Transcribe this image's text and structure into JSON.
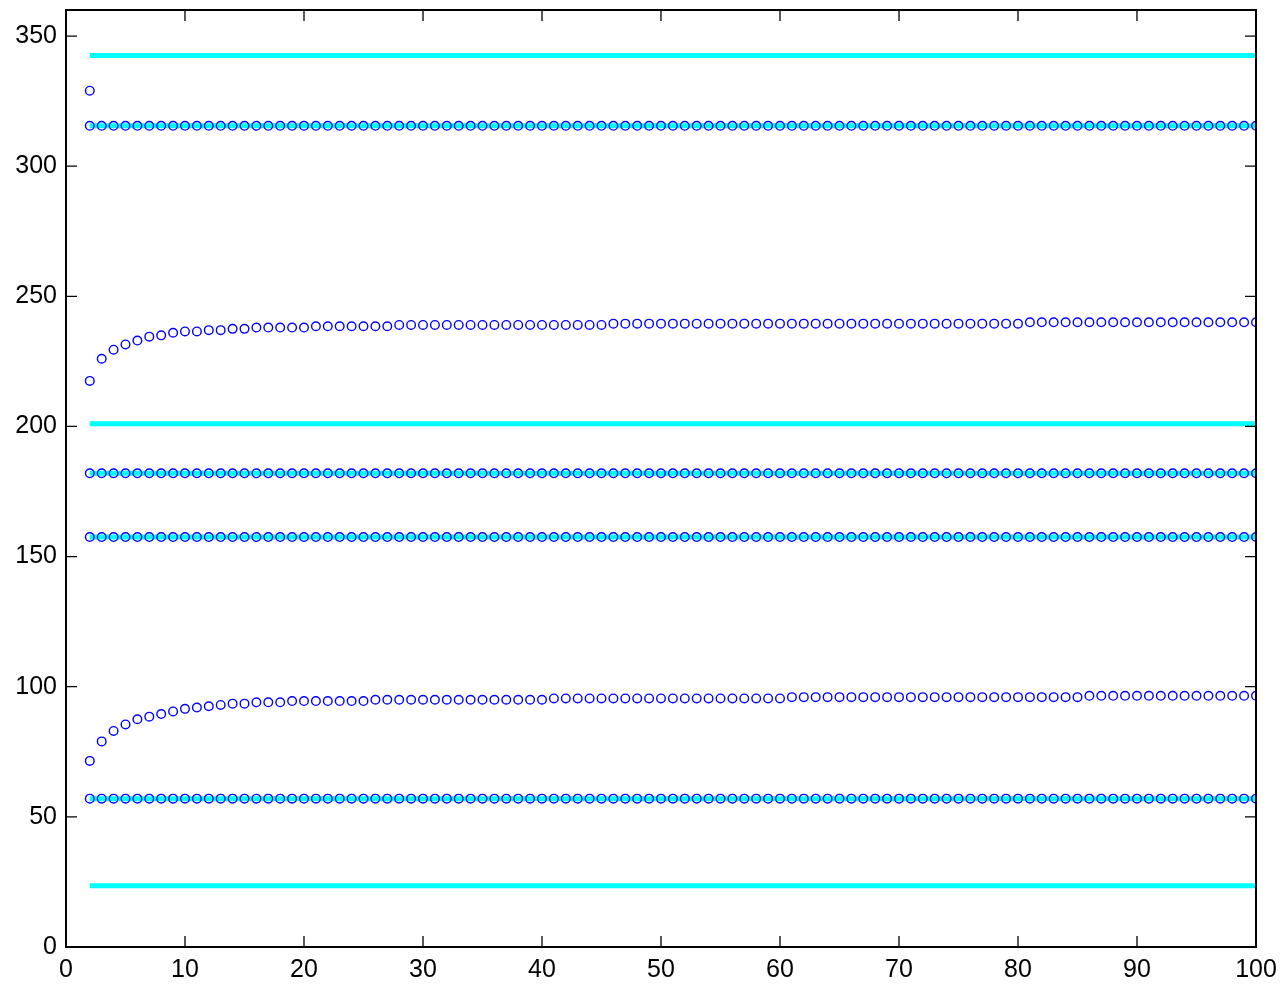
{
  "chart_data": {
    "type": "scatter",
    "xlim": [
      0,
      100
    ],
    "ylim": [
      0,
      360
    ],
    "xticks": [
      0,
      10,
      20,
      30,
      40,
      50,
      60,
      70,
      80,
      90,
      100
    ],
    "yticks": [
      0,
      50,
      100,
      150,
      200,
      250,
      300,
      350
    ],
    "grid": false,
    "legend": false,
    "marker": "circle",
    "x": [
      2,
      3,
      4,
      5,
      6,
      7,
      8,
      9,
      10,
      11,
      12,
      13,
      14,
      15,
      16,
      17,
      18,
      19,
      20,
      21,
      22,
      23,
      24,
      25,
      26,
      27,
      28,
      29,
      30,
      31,
      32,
      33,
      34,
      35,
      36,
      37,
      38,
      39,
      40,
      41,
      42,
      43,
      44,
      45,
      46,
      47,
      48,
      49,
      50,
      51,
      52,
      53,
      54,
      55,
      56,
      57,
      58,
      59,
      60,
      61,
      62,
      63,
      64,
      65,
      66,
      67,
      68,
      69,
      70,
      71,
      72,
      73,
      74,
      75,
      76,
      77,
      78,
      79,
      80,
      81,
      82,
      83,
      84,
      85,
      86,
      87,
      88,
      89,
      90,
      91,
      92,
      93,
      94,
      95,
      96,
      97,
      98,
      99,
      100
    ],
    "series": [
      {
        "type": "line",
        "marker": "none",
        "color": "#00ffff",
        "values": [
          342.5,
          342.5,
          342.5,
          342.5,
          342.5,
          342.5,
          342.5,
          342.5,
          342.5,
          342.5,
          342.5,
          342.5,
          342.5,
          342.5,
          342.5,
          342.5,
          342.5,
          342.5,
          342.5,
          342.5,
          342.5,
          342.5,
          342.5,
          342.5,
          342.5,
          342.5,
          342.5,
          342.5,
          342.5,
          342.5,
          342.5,
          342.5,
          342.5,
          342.5,
          342.5,
          342.5,
          342.5,
          342.5,
          342.5,
          342.5,
          342.5,
          342.5,
          342.5,
          342.5,
          342.5,
          342.5,
          342.5,
          342.5,
          342.5,
          342.5,
          342.5,
          342.5,
          342.5,
          342.5,
          342.5,
          342.5,
          342.5,
          342.5,
          342.5,
          342.5,
          342.5,
          342.5,
          342.5,
          342.5,
          342.5,
          342.5,
          342.5,
          342.5,
          342.5,
          342.5,
          342.5,
          342.5,
          342.5,
          342.5,
          342.5,
          342.5,
          342.5,
          342.5,
          342.5,
          342.5,
          342.5,
          342.5,
          342.5,
          342.5,
          342.5,
          342.5,
          342.5,
          342.5,
          342.5,
          342.5,
          342.5,
          342.5,
          342.5,
          342.5,
          342.5,
          342.5,
          342.5,
          342.5,
          342.5
        ]
      },
      {
        "type": "line",
        "marker": "none",
        "color": "#00ffff",
        "values": [
          315.5,
          315.5,
          315.5,
          315.5,
          315.5,
          315.5,
          315.5,
          315.5,
          315.5,
          315.5,
          315.5,
          315.5,
          315.5,
          315.5,
          315.5,
          315.5,
          315.5,
          315.5,
          315.5,
          315.5,
          315.5,
          315.5,
          315.5,
          315.5,
          315.5,
          315.5,
          315.5,
          315.5,
          315.5,
          315.5,
          315.5,
          315.5,
          315.5,
          315.5,
          315.5,
          315.5,
          315.5,
          315.5,
          315.5,
          315.5,
          315.5,
          315.5,
          315.5,
          315.5,
          315.5,
          315.5,
          315.5,
          315.5,
          315.5,
          315.5,
          315.5,
          315.5,
          315.5,
          315.5,
          315.5,
          315.5,
          315.5,
          315.5,
          315.5,
          315.5,
          315.5,
          315.5,
          315.5,
          315.5,
          315.5,
          315.5,
          315.5,
          315.5,
          315.5,
          315.5,
          315.5,
          315.5,
          315.5,
          315.5,
          315.5,
          315.5,
          315.5,
          315.5,
          315.5,
          315.5,
          315.5,
          315.5,
          315.5,
          315.5,
          315.5,
          315.5,
          315.5,
          315.5,
          315.5,
          315.5,
          315.5,
          315.5,
          315.5,
          315.5,
          315.5,
          315.5,
          315.5,
          315.5,
          315.5
        ]
      },
      {
        "type": "line",
        "marker": "none",
        "color": "#00ffff",
        "values": [
          201,
          201,
          201,
          201,
          201,
          201,
          201,
          201,
          201,
          201,
          201,
          201,
          201,
          201,
          201,
          201,
          201,
          201,
          201,
          201,
          201,
          201,
          201,
          201,
          201,
          201,
          201,
          201,
          201,
          201,
          201,
          201,
          201,
          201,
          201,
          201,
          201,
          201,
          201,
          201,
          201,
          201,
          201,
          201,
          201,
          201,
          201,
          201,
          201,
          201,
          201,
          201,
          201,
          201,
          201,
          201,
          201,
          201,
          201,
          201,
          201,
          201,
          201,
          201,
          201,
          201,
          201,
          201,
          201,
          201,
          201,
          201,
          201,
          201,
          201,
          201,
          201,
          201,
          201,
          201,
          201,
          201,
          201,
          201,
          201,
          201,
          201,
          201,
          201,
          201,
          201,
          201,
          201,
          201,
          201,
          201,
          201,
          201,
          201
        ]
      },
      {
        "type": "line",
        "marker": "none",
        "color": "#00ffff",
        "values": [
          182,
          182,
          182,
          182,
          182,
          182,
          182,
          182,
          182,
          182,
          182,
          182,
          182,
          182,
          182,
          182,
          182,
          182,
          182,
          182,
          182,
          182,
          182,
          182,
          182,
          182,
          182,
          182,
          182,
          182,
          182,
          182,
          182,
          182,
          182,
          182,
          182,
          182,
          182,
          182,
          182,
          182,
          182,
          182,
          182,
          182,
          182,
          182,
          182,
          182,
          182,
          182,
          182,
          182,
          182,
          182,
          182,
          182,
          182,
          182,
          182,
          182,
          182,
          182,
          182,
          182,
          182,
          182,
          182,
          182,
          182,
          182,
          182,
          182,
          182,
          182,
          182,
          182,
          182,
          182,
          182,
          182,
          182,
          182,
          182,
          182,
          182,
          182,
          182,
          182,
          182,
          182,
          182,
          182,
          182,
          182,
          182,
          182,
          182
        ]
      },
      {
        "type": "line",
        "marker": "none",
        "color": "#00ffff",
        "values": [
          157.5,
          157.5,
          157.5,
          157.5,
          157.5,
          157.5,
          157.5,
          157.5,
          157.5,
          157.5,
          157.5,
          157.5,
          157.5,
          157.5,
          157.5,
          157.5,
          157.5,
          157.5,
          157.5,
          157.5,
          157.5,
          157.5,
          157.5,
          157.5,
          157.5,
          157.5,
          157.5,
          157.5,
          157.5,
          157.5,
          157.5,
          157.5,
          157.5,
          157.5,
          157.5,
          157.5,
          157.5,
          157.5,
          157.5,
          157.5,
          157.5,
          157.5,
          157.5,
          157.5,
          157.5,
          157.5,
          157.5,
          157.5,
          157.5,
          157.5,
          157.5,
          157.5,
          157.5,
          157.5,
          157.5,
          157.5,
          157.5,
          157.5,
          157.5,
          157.5,
          157.5,
          157.5,
          157.5,
          157.5,
          157.5,
          157.5,
          157.5,
          157.5,
          157.5,
          157.5,
          157.5,
          157.5,
          157.5,
          157.5,
          157.5,
          157.5,
          157.5,
          157.5,
          157.5,
          157.5,
          157.5,
          157.5,
          157.5,
          157.5,
          157.5,
          157.5,
          157.5,
          157.5,
          157.5,
          157.5,
          157.5,
          157.5,
          157.5,
          157.5,
          157.5,
          157.5,
          157.5,
          157.5,
          157.5
        ]
      },
      {
        "type": "line",
        "marker": "none",
        "color": "#00ffff",
        "values": [
          57,
          57,
          57,
          57,
          57,
          57,
          57,
          57,
          57,
          57,
          57,
          57,
          57,
          57,
          57,
          57,
          57,
          57,
          57,
          57,
          57,
          57,
          57,
          57,
          57,
          57,
          57,
          57,
          57,
          57,
          57,
          57,
          57,
          57,
          57,
          57,
          57,
          57,
          57,
          57,
          57,
          57,
          57,
          57,
          57,
          57,
          57,
          57,
          57,
          57,
          57,
          57,
          57,
          57,
          57,
          57,
          57,
          57,
          57,
          57,
          57,
          57,
          57,
          57,
          57,
          57,
          57,
          57,
          57,
          57,
          57,
          57,
          57,
          57,
          57,
          57,
          57,
          57,
          57,
          57,
          57,
          57,
          57,
          57,
          57,
          57,
          57,
          57,
          57,
          57,
          57,
          57,
          57,
          57,
          57,
          57,
          57,
          57,
          57
        ]
      },
      {
        "type": "line",
        "marker": "none",
        "color": "#00ffff",
        "values": [
          23.5,
          23.5,
          23.5,
          23.5,
          23.5,
          23.5,
          23.5,
          23.5,
          23.5,
          23.5,
          23.5,
          23.5,
          23.5,
          23.5,
          23.5,
          23.5,
          23.5,
          23.5,
          23.5,
          23.5,
          23.5,
          23.5,
          23.5,
          23.5,
          23.5,
          23.5,
          23.5,
          23.5,
          23.5,
          23.5,
          23.5,
          23.5,
          23.5,
          23.5,
          23.5,
          23.5,
          23.5,
          23.5,
          23.5,
          23.5,
          23.5,
          23.5,
          23.5,
          23.5,
          23.5,
          23.5,
          23.5,
          23.5,
          23.5,
          23.5,
          23.5,
          23.5,
          23.5,
          23.5,
          23.5,
          23.5,
          23.5,
          23.5,
          23.5,
          23.5,
          23.5,
          23.5,
          23.5,
          23.5,
          23.5,
          23.5,
          23.5,
          23.5,
          23.5,
          23.5,
          23.5,
          23.5,
          23.5,
          23.5,
          23.5,
          23.5,
          23.5,
          23.5,
          23.5,
          23.5,
          23.5,
          23.5,
          23.5,
          23.5,
          23.5,
          23.5,
          23.5,
          23.5,
          23.5,
          23.5,
          23.5,
          23.5,
          23.5,
          23.5,
          23.5,
          23.5,
          23.5,
          23.5,
          23.5
        ]
      },
      {
        "color": "#0000ff",
        "values": [
          329,
          null,
          null,
          null,
          null,
          null,
          null,
          null,
          null,
          null,
          null,
          null,
          null,
          null,
          null,
          null,
          null,
          null,
          null,
          null,
          null,
          null,
          null,
          null,
          null,
          null,
          null,
          null,
          null,
          null,
          null,
          null,
          null,
          null,
          null,
          null,
          null,
          null,
          null,
          null,
          null,
          null,
          null,
          null,
          null,
          null,
          null,
          null,
          null,
          null,
          null,
          null,
          null,
          null,
          null,
          null,
          null,
          null,
          null,
          null,
          null,
          null,
          null,
          null,
          null,
          null,
          null,
          null,
          null,
          null,
          null,
          null,
          null,
          null,
          null,
          null,
          null,
          null,
          null,
          null,
          null,
          null,
          null,
          null,
          null,
          null,
          null,
          null,
          null,
          null,
          null,
          null,
          null,
          null,
          null,
          null,
          null,
          null,
          null
        ]
      },
      {
        "color": "#0000ff",
        "values": [
          315.5,
          315.5,
          315.5,
          315.5,
          315.5,
          315.5,
          315.5,
          315.5,
          315.5,
          315.5,
          315.5,
          315.5,
          315.5,
          315.5,
          315.5,
          315.5,
          315.5,
          315.5,
          315.5,
          315.5,
          315.5,
          315.5,
          315.5,
          315.5,
          315.5,
          315.5,
          315.5,
          315.5,
          315.5,
          315.5,
          315.5,
          315.5,
          315.5,
          315.5,
          315.5,
          315.5,
          315.5,
          315.5,
          315.5,
          315.5,
          315.5,
          315.5,
          315.5,
          315.5,
          315.5,
          315.5,
          315.5,
          315.5,
          315.5,
          315.5,
          315.5,
          315.5,
          315.5,
          315.5,
          315.5,
          315.5,
          315.5,
          315.5,
          315.5,
          315.5,
          315.5,
          315.5,
          315.5,
          315.5,
          315.5,
          315.5,
          315.5,
          315.5,
          315.5,
          315.5,
          315.5,
          315.5,
          315.5,
          315.5,
          315.5,
          315.5,
          315.5,
          315.5,
          315.5,
          315.5,
          315.5,
          315.5,
          315.5,
          315.5,
          315.5,
          315.5,
          315.5,
          315.5,
          315.5,
          315.5,
          315.5,
          315.5,
          315.5,
          315.5,
          315.5,
          315.5,
          315.5,
          315.5,
          315.5
        ]
      },
      {
        "color": "#0000ff",
        "values": [
          217.5,
          226,
          229.5,
          231.5,
          233,
          234.5,
          235,
          236,
          236.5,
          236.5,
          237,
          237,
          237.5,
          237.5,
          238,
          238,
          238,
          238,
          238,
          238.5,
          238.5,
          238.5,
          238.5,
          238.5,
          238.5,
          238.5,
          239,
          239,
          239,
          239,
          239,
          239,
          239,
          239,
          239,
          239,
          239,
          239,
          239,
          239,
          239,
          239,
          239,
          239,
          239.5,
          239.5,
          239.5,
          239.5,
          239.5,
          239.5,
          239.5,
          239.5,
          239.5,
          239.5,
          239.5,
          239.5,
          239.5,
          239.5,
          239.5,
          239.5,
          239.5,
          239.5,
          239.5,
          239.5,
          239.5,
          239.5,
          239.5,
          239.5,
          239.5,
          239.5,
          239.5,
          239.5,
          239.5,
          239.5,
          239.5,
          239.5,
          239.5,
          239.5,
          239.5,
          240,
          240,
          240,
          240,
          240,
          240,
          240,
          240,
          240,
          240,
          240,
          240,
          240,
          240,
          240,
          240,
          240,
          240,
          240,
          240
        ]
      },
      {
        "color": "#0000ff",
        "values": [
          182,
          182,
          182,
          182,
          182,
          182,
          182,
          182,
          182,
          182,
          182,
          182,
          182,
          182,
          182,
          182,
          182,
          182,
          182,
          182,
          182,
          182,
          182,
          182,
          182,
          182,
          182,
          182,
          182,
          182,
          182,
          182,
          182,
          182,
          182,
          182,
          182,
          182,
          182,
          182,
          182,
          182,
          182,
          182,
          182,
          182,
          182,
          182,
          182,
          182,
          182,
          182,
          182,
          182,
          182,
          182,
          182,
          182,
          182,
          182,
          182,
          182,
          182,
          182,
          182,
          182,
          182,
          182,
          182,
          182,
          182,
          182,
          182,
          182,
          182,
          182,
          182,
          182,
          182,
          182,
          182,
          182,
          182,
          182,
          182,
          182,
          182,
          182,
          182,
          182,
          182,
          182,
          182,
          182,
          182,
          182,
          182,
          182,
          182
        ]
      },
      {
        "color": "#0000ff",
        "values": [
          157.5,
          157.5,
          157.5,
          157.5,
          157.5,
          157.5,
          157.5,
          157.5,
          157.5,
          157.5,
          157.5,
          157.5,
          157.5,
          157.5,
          157.5,
          157.5,
          157.5,
          157.5,
          157.5,
          157.5,
          157.5,
          157.5,
          157.5,
          157.5,
          157.5,
          157.5,
          157.5,
          157.5,
          157.5,
          157.5,
          157.5,
          157.5,
          157.5,
          157.5,
          157.5,
          157.5,
          157.5,
          157.5,
          157.5,
          157.5,
          157.5,
          157.5,
          157.5,
          157.5,
          157.5,
          157.5,
          157.5,
          157.5,
          157.5,
          157.5,
          157.5,
          157.5,
          157.5,
          157.5,
          157.5,
          157.5,
          157.5,
          157.5,
          157.5,
          157.5,
          157.5,
          157.5,
          157.5,
          157.5,
          157.5,
          157.5,
          157.5,
          157.5,
          157.5,
          157.5,
          157.5,
          157.5,
          157.5,
          157.5,
          157.5,
          157.5,
          157.5,
          157.5,
          157.5,
          157.5,
          157.5,
          157.5,
          157.5,
          157.5,
          157.5,
          157.5,
          157.5,
          157.5,
          157.5,
          157.5,
          157.5,
          157.5,
          157.5,
          157.5,
          157.5,
          157.5,
          157.5,
          157.5,
          157.5
        ]
      },
      {
        "color": "#0000ff",
        "values": [
          71.5,
          79,
          83,
          85.5,
          87.5,
          88.5,
          89.5,
          90.5,
          91.5,
          92,
          92.5,
          93,
          93.5,
          93.5,
          94,
          94,
          94,
          94.5,
          94.5,
          94.5,
          94.5,
          94.5,
          94.5,
          94.5,
          95,
          95,
          95,
          95,
          95,
          95,
          95,
          95,
          95,
          95,
          95,
          95,
          95,
          95,
          95,
          95.5,
          95.5,
          95.5,
          95.5,
          95.5,
          95.5,
          95.5,
          95.5,
          95.5,
          95.5,
          95.5,
          95.5,
          95.5,
          95.5,
          95.5,
          95.5,
          95.5,
          95.5,
          95.5,
          95.5,
          96,
          96,
          96,
          96,
          96,
          96,
          96,
          96,
          96,
          96,
          96,
          96,
          96,
          96,
          96,
          96,
          96,
          96,
          96,
          96,
          96,
          96,
          96,
          96,
          96,
          96.5,
          96.5,
          96.5,
          96.5,
          96.5,
          96.5,
          96.5,
          96.5,
          96.5,
          96.5,
          96.5,
          96.5,
          96.5,
          96.5,
          96.5
        ]
      },
      {
        "color": "#0000ff",
        "values": [
          57,
          57,
          57,
          57,
          57,
          57,
          57,
          57,
          57,
          57,
          57,
          57,
          57,
          57,
          57,
          57,
          57,
          57,
          57,
          57,
          57,
          57,
          57,
          57,
          57,
          57,
          57,
          57,
          57,
          57,
          57,
          57,
          57,
          57,
          57,
          57,
          57,
          57,
          57,
          57,
          57,
          57,
          57,
          57,
          57,
          57,
          57,
          57,
          57,
          57,
          57,
          57,
          57,
          57,
          57,
          57,
          57,
          57,
          57,
          57,
          57,
          57,
          57,
          57,
          57,
          57,
          57,
          57,
          57,
          57,
          57,
          57,
          57,
          57,
          57,
          57,
          57,
          57,
          57,
          57,
          57,
          57,
          57,
          57,
          57,
          57,
          57,
          57,
          57,
          57,
          57,
          57,
          57,
          57,
          57,
          57,
          57,
          57,
          57
        ]
      }
    ]
  }
}
